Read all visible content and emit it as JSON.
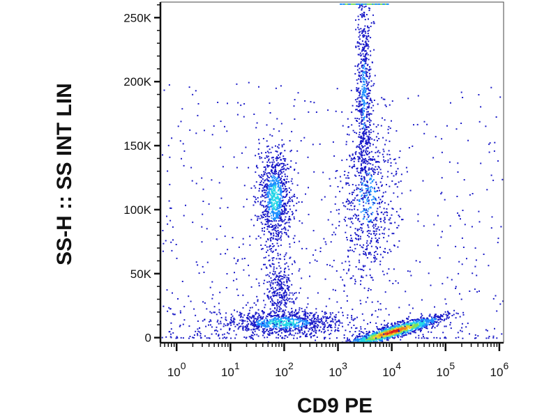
{
  "chart_data": {
    "type": "heatmap",
    "subtype": "flow cytometry density dot plot",
    "xlabel": "CD9 PE",
    "ylabel": "SS-H :: SS INT LIN",
    "x_scale": "log",
    "y_scale": "linear",
    "xlim": [
      0.5,
      1200000
    ],
    "ylim": [
      -4000,
      262144
    ],
    "x_ticks": [
      {
        "value": 1,
        "base": "10",
        "exp": "0"
      },
      {
        "value": 10,
        "base": "10",
        "exp": "1"
      },
      {
        "value": 100,
        "base": "10",
        "exp": "2"
      },
      {
        "value": 1000,
        "base": "10",
        "exp": "3"
      },
      {
        "value": 10000,
        "base": "10",
        "exp": "4"
      },
      {
        "value": 100000,
        "base": "10",
        "exp": "5"
      },
      {
        "value": 1000000,
        "base": "10",
        "exp": "6"
      }
    ],
    "y_ticks": [
      {
        "value": 0,
        "label": "0"
      },
      {
        "value": 50000,
        "label": "50K"
      },
      {
        "value": 100000,
        "label": "100K"
      },
      {
        "value": 150000,
        "label": "150K"
      },
      {
        "value": 200000,
        "label": "200K"
      },
      {
        "value": 250000,
        "label": "250K"
      }
    ],
    "populations": [
      {
        "center_x": 65,
        "center_y": 110000,
        "spread_log_x": 0.16,
        "spread_y": 20000,
        "density": "high"
      },
      {
        "center_x": 10000,
        "center_y": 5000,
        "spread_log_x": 0.45,
        "spread_y": 5000,
        "density": "very high"
      },
      {
        "center_x": 90,
        "center_y": 12000,
        "spread_log_x": 0.55,
        "spread_y": 5000,
        "density": "high"
      },
      {
        "center_x": 3500,
        "center_y": 110000,
        "spread_log_x": 0.28,
        "spread_y": 35000,
        "density": "medium"
      },
      {
        "center_x": 3000,
        "center_y": 190000,
        "spread_log_x": 0.07,
        "spread_y": 45000,
        "density": "medium"
      },
      {
        "center_x": 80,
        "center_y": 40000,
        "spread_log_x": 0.14,
        "spread_y": 12000,
        "density": "low"
      }
    ],
    "grid": false,
    "legend": "none"
  },
  "colors": {
    "axis": "#111111",
    "density_scale": [
      "#1b1bc8",
      "#1e90ff",
      "#23d6e6",
      "#7ee35a",
      "#f2d12e",
      "#f07a1a",
      "#e01c1c"
    ]
  }
}
